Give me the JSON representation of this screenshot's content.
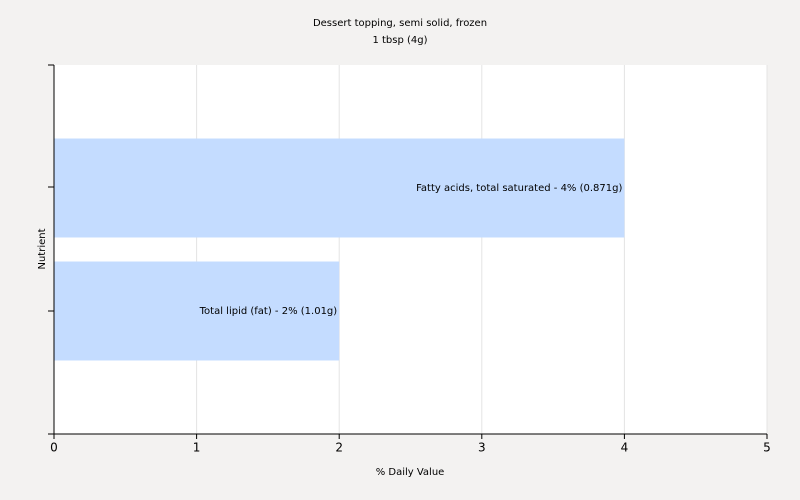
{
  "chart_data": {
    "type": "hbar",
    "title": "Dessert topping, semi solid, frozen",
    "subtitle": "1 tbsp (4g)",
    "x_label": "% Daily Value",
    "y_label": "Nutrient",
    "values": [
      4,
      2
    ],
    "value_labels": [
      "Fatty acids, total saturated - 4% (0.871g)",
      "Total lipid (fat) - 2% (1.01g)"
    ],
    "color": "#c4dcff",
    "xlim": [
      0,
      5
    ],
    "xticks": [
      0,
      1,
      2,
      3,
      4,
      5
    ],
    "grid": true
  }
}
